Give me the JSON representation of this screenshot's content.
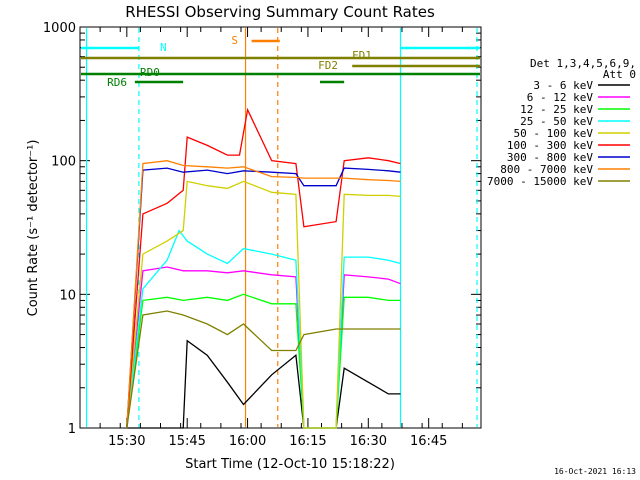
{
  "chart_data": {
    "type": "line",
    "title": "RHESSI Observing Summary Count Rates",
    "xlabel": "Start Time (12-Oct-10 15:18:22)",
    "ylabel": "Count Rate (s⁻¹ detector⁻¹)",
    "x_unit": "minutes after 15:18:22",
    "xlim": [
      "15:18:22",
      "16:58:00"
    ],
    "ylim": [
      1,
      1000
    ],
    "yscale": "log",
    "xticks": [
      "15:30",
      "15:45",
      "16:00",
      "16:15",
      "16:30",
      "16:45"
    ],
    "yticks": [
      "1",
      "10",
      "100",
      "1000"
    ],
    "legend_position": "right",
    "legend_header": [
      "Det 1,3,4,5,6,9,",
      "Att 0"
    ],
    "timestamp": "16-Oct-2021 16:13",
    "series": [
      {
        "name": "3 - 6 keV",
        "color": "#000000",
        "points": [
          [
            "15:30:00",
            0
          ],
          [
            "15:44:00",
            0
          ],
          [
            "15:45:00",
            4.5
          ],
          [
            "15:50:00",
            3.5
          ],
          [
            "15:55:00",
            2.2
          ],
          [
            "15:59:00",
            1.5
          ],
          [
            "16:06:00",
            2.5
          ],
          [
            "16:12:00",
            3.5
          ],
          [
            "16:14:00",
            0
          ],
          [
            "16:22:00",
            0
          ],
          [
            "16:24:00",
            2.8
          ],
          [
            "16:30:00",
            2.2
          ],
          [
            "16:35:00",
            1.8
          ],
          [
            "16:38:00",
            1.8
          ]
        ]
      },
      {
        "name": "6 - 12 keV",
        "color": "#ff00ff",
        "points": [
          [
            "15:30:00",
            0
          ],
          [
            "15:34:00",
            15
          ],
          [
            "15:40:00",
            16
          ],
          [
            "15:44:00",
            15
          ],
          [
            "15:50:00",
            15
          ],
          [
            "15:55:00",
            14.5
          ],
          [
            "15:59:00",
            15
          ],
          [
            "16:06:00",
            14
          ],
          [
            "16:12:00",
            13.5
          ],
          [
            "16:14:00",
            0
          ],
          [
            "16:22:00",
            0
          ],
          [
            "16:24:00",
            14
          ],
          [
            "16:30:00",
            13.5
          ],
          [
            "16:35:00",
            13
          ],
          [
            "16:38:00",
            12
          ]
        ]
      },
      {
        "name": "12 - 25 keV",
        "color": "#00ff00",
        "points": [
          [
            "15:30:00",
            0
          ],
          [
            "15:34:00",
            9
          ],
          [
            "15:40:00",
            9.5
          ],
          [
            "15:44:00",
            9
          ],
          [
            "15:50:00",
            9.5
          ],
          [
            "15:55:00",
            9
          ],
          [
            "15:59:00",
            10
          ],
          [
            "16:06:00",
            8.5
          ],
          [
            "16:12:00",
            8.5
          ],
          [
            "16:14:00",
            0
          ],
          [
            "16:22:00",
            0
          ],
          [
            "16:24:00",
            9.5
          ],
          [
            "16:30:00",
            9.5
          ],
          [
            "16:35:00",
            9
          ],
          [
            "16:38:00",
            9
          ]
        ]
      },
      {
        "name": "25 - 50 keV",
        "color": "#00ffff",
        "points": [
          [
            "15:30:00",
            0
          ],
          [
            "15:34:00",
            11
          ],
          [
            "15:40:00",
            18
          ],
          [
            "15:43:00",
            30
          ],
          [
            "15:45:00",
            25
          ],
          [
            "15:50:00",
            20
          ],
          [
            "15:55:00",
            17
          ],
          [
            "15:59:00",
            22
          ],
          [
            "16:06:00",
            20
          ],
          [
            "16:12:00",
            18
          ],
          [
            "16:14:00",
            0
          ],
          [
            "16:22:00",
            0
          ],
          [
            "16:24:00",
            19
          ],
          [
            "16:30:00",
            19
          ],
          [
            "16:35:00",
            18
          ],
          [
            "16:38:00",
            17
          ]
        ]
      },
      {
        "name": "50 - 100 keV",
        "color": "#d0d000",
        "points": [
          [
            "15:30:00",
            0
          ],
          [
            "15:34:00",
            20
          ],
          [
            "15:40:00",
            25
          ],
          [
            "15:44:00",
            30
          ],
          [
            "15:45:00",
            70
          ],
          [
            "15:50:00",
            65
          ],
          [
            "15:55:00",
            62
          ],
          [
            "15:59:00",
            70
          ],
          [
            "16:06:00",
            58
          ],
          [
            "16:12:00",
            56
          ],
          [
            "16:14:00",
            0
          ],
          [
            "16:22:00",
            0
          ],
          [
            "16:24:00",
            56
          ],
          [
            "16:30:00",
            55
          ],
          [
            "16:35:00",
            55
          ],
          [
            "16:38:00",
            54
          ]
        ]
      },
      {
        "name": "100 - 300 keV",
        "color": "#ff0000",
        "points": [
          [
            "15:30:00",
            0
          ],
          [
            "15:34:00",
            40
          ],
          [
            "15:40:00",
            48
          ],
          [
            "15:44:00",
            60
          ],
          [
            "15:45:00",
            150
          ],
          [
            "15:50:00",
            130
          ],
          [
            "15:55:00",
            110
          ],
          [
            "15:58:00",
            110
          ],
          [
            "16:00:00",
            240
          ],
          [
            "16:06:00",
            100
          ],
          [
            "16:12:00",
            95
          ],
          [
            "16:14:00",
            32
          ],
          [
            "16:22:00",
            35
          ],
          [
            "16:24:00",
            100
          ],
          [
            "16:30:00",
            105
          ],
          [
            "16:35:00",
            100
          ],
          [
            "16:38:00",
            95
          ]
        ]
      },
      {
        "name": "300 - 800 keV",
        "color": "#0000cc",
        "points": [
          [
            "15:30:00",
            0
          ],
          [
            "15:34:00",
            85
          ],
          [
            "15:40:00",
            88
          ],
          [
            "15:44:00",
            82
          ],
          [
            "15:50:00",
            85
          ],
          [
            "15:55:00",
            80
          ],
          [
            "15:59:00",
            84
          ],
          [
            "16:06:00",
            82
          ],
          [
            "16:12:00",
            80
          ],
          [
            "16:14:00",
            65
          ],
          [
            "16:22:00",
            65
          ],
          [
            "16:24:00",
            88
          ],
          [
            "16:30:00",
            86
          ],
          [
            "16:35:00",
            84
          ],
          [
            "16:38:00",
            82
          ]
        ]
      },
      {
        "name": "800 - 7000 keV",
        "color": "#ff8000",
        "points": [
          [
            "15:30:00",
            0
          ],
          [
            "15:34:00",
            95
          ],
          [
            "15:40:00",
            100
          ],
          [
            "15:44:00",
            92
          ],
          [
            "15:50:00",
            90
          ],
          [
            "15:55:00",
            88
          ],
          [
            "15:59:00",
            90
          ],
          [
            "16:06:00",
            76
          ],
          [
            "16:12:00",
            75
          ],
          [
            "16:14:00",
            74
          ],
          [
            "16:22:00",
            74
          ],
          [
            "16:24:00",
            74
          ],
          [
            "16:30:00",
            72
          ],
          [
            "16:35:00",
            71
          ],
          [
            "16:38:00",
            70
          ]
        ]
      },
      {
        "name": "7000 - 15000 keV",
        "color": "#808000",
        "points": [
          [
            "15:30:00",
            0
          ],
          [
            "15:34:00",
            7
          ],
          [
            "15:40:00",
            7.5
          ],
          [
            "15:44:00",
            7
          ],
          [
            "15:50:00",
            6
          ],
          [
            "15:55:00",
            5
          ],
          [
            "15:59:00",
            6
          ],
          [
            "16:06:00",
            3.8
          ],
          [
            "16:12:00",
            3.8
          ],
          [
            "16:14:00",
            5
          ],
          [
            "16:22:00",
            5.5
          ],
          [
            "16:24:00",
            5.5
          ],
          [
            "16:30:00",
            5.5
          ],
          [
            "16:35:00",
            5.5
          ],
          [
            "16:38:00",
            5.5
          ]
        ]
      }
    ],
    "flag_bars": [
      {
        "label": "N",
        "color": "#00ffff",
        "spans": [
          [
            "15:18:22",
            "15:33:00"
          ],
          [
            "16:38:00",
            "16:58:00"
          ]
        ]
      },
      {
        "label": "S",
        "color": "#ff8000",
        "spans": [
          [
            "16:01:00",
            "16:08:00"
          ]
        ]
      },
      {
        "label": "FD1",
        "color": "#808000",
        "spans": [
          [
            "15:18:22",
            "16:58:00"
          ]
        ]
      },
      {
        "label": "FD2",
        "color": "#808000",
        "spans": [
          [
            "16:26:00",
            "16:58:00"
          ]
        ]
      },
      {
        "label": "RD0",
        "color": "#008000",
        "spans": [
          [
            "15:18:22",
            "16:58:00"
          ]
        ]
      },
      {
        "label": "RD6",
        "color": "#008000",
        "spans": [
          [
            "15:32:00",
            "15:44:00"
          ],
          [
            "16:18:00",
            "16:24:00"
          ]
        ]
      }
    ],
    "vertical_markers": [
      {
        "color": "#00ffff",
        "time": "15:20:00",
        "style": "solid"
      },
      {
        "color": "#00ffff",
        "time": "15:33:00",
        "style": "dashed"
      },
      {
        "color": "#ff8000",
        "time": "15:59:30",
        "style": "solid"
      },
      {
        "color": "#ff8000",
        "time": "16:07:30",
        "style": "dashed"
      },
      {
        "color": "#00ffff",
        "time": "16:38:00",
        "style": "solid"
      },
      {
        "color": "#00ffff",
        "time": "16:57:00",
        "style": "dashed"
      }
    ]
  }
}
